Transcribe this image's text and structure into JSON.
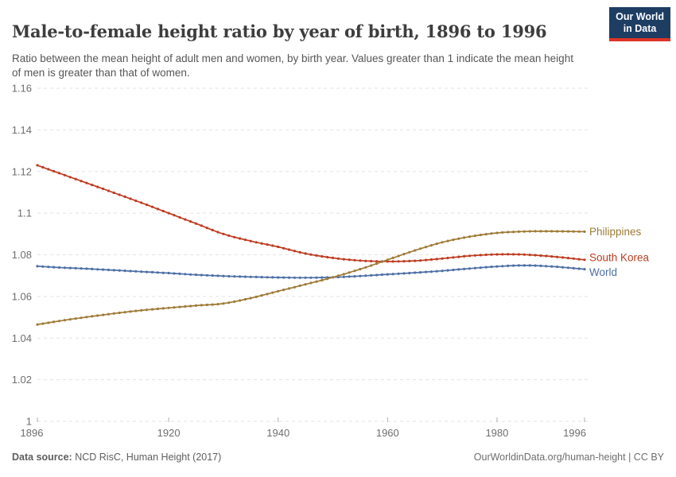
{
  "header": {
    "title": "Male-to-female height ratio by year of birth, 1896 to 1996",
    "subtitle": "Ratio between the mean height of adult men and women, by birth year. Values greater than 1 indicate the mean height of men is greater than that of women."
  },
  "logo": {
    "line1": "Our World",
    "line2": "in Data"
  },
  "footer": {
    "source_label": "Data source:",
    "source_value": " NCD RisC, Human Height (2017)",
    "attribution": "OurWorldinData.org/human-height | CC BY"
  },
  "colors": {
    "title": "#3d3d3d",
    "subtitle": "#565656",
    "axis_text": "#6e6e6e",
    "grid": "#e3e3e3",
    "tick": "#b0b0b0",
    "logo_bg": "#1d3d63",
    "logo_red": "#dc3426",
    "philippines": "#9e7b36",
    "south_korea": "#be3c20",
    "world": "#4c6fa5"
  },
  "chart_data": {
    "type": "line",
    "title": "Male-to-female height ratio by year of birth, 1896 to 1996",
    "xlabel": "",
    "ylabel": "",
    "xlim": [
      1896,
      1996
    ],
    "ylim": [
      1.0,
      1.16
    ],
    "grid": "horizontal-dashed",
    "legend_position": "right-end-labels",
    "markers": "circle-every-year",
    "x_ticks": [
      {
        "year": 1896,
        "label": "1896"
      },
      {
        "year": 1920,
        "label": "1920"
      },
      {
        "year": 1940,
        "label": "1940"
      },
      {
        "year": 1960,
        "label": "1960"
      },
      {
        "year": 1980,
        "label": "1980"
      },
      {
        "year": 1996,
        "label": "1996"
      }
    ],
    "y_ticks": [
      {
        "value": 1.0,
        "label": "1"
      },
      {
        "value": 1.02,
        "label": "1.02"
      },
      {
        "value": 1.04,
        "label": "1.04"
      },
      {
        "value": 1.06,
        "label": "1.06"
      },
      {
        "value": 1.08,
        "label": "1.08"
      },
      {
        "value": 1.1,
        "label": "1.1"
      },
      {
        "value": 1.12,
        "label": "1.12"
      },
      {
        "value": 1.14,
        "label": "1.14"
      },
      {
        "value": 1.16,
        "label": "1.16"
      }
    ],
    "series": [
      {
        "name": "World",
        "color_key": "world",
        "label_dy": 4,
        "points": [
          [
            1896,
            1.0745
          ],
          [
            1900,
            1.0739
          ],
          [
            1905,
            1.0733
          ],
          [
            1910,
            1.0726
          ],
          [
            1915,
            1.0719
          ],
          [
            1920,
            1.0712
          ],
          [
            1925,
            1.0704
          ],
          [
            1930,
            1.0698
          ],
          [
            1935,
            1.0694
          ],
          [
            1940,
            1.0691
          ],
          [
            1945,
            1.069
          ],
          [
            1950,
            1.0692
          ],
          [
            1955,
            1.0698
          ],
          [
            1960,
            1.0706
          ],
          [
            1965,
            1.0714
          ],
          [
            1970,
            1.0723
          ],
          [
            1975,
            1.0734
          ],
          [
            1980,
            1.0744
          ],
          [
            1985,
            1.0749
          ],
          [
            1990,
            1.0744
          ],
          [
            1996,
            1.0731
          ]
        ]
      },
      {
        "name": "South Korea",
        "color_key": "south_korea",
        "label_dy": -3,
        "points": [
          [
            1896,
            1.123
          ],
          [
            1900,
            1.1192
          ],
          [
            1905,
            1.1145
          ],
          [
            1910,
            1.1098
          ],
          [
            1915,
            1.105
          ],
          [
            1920,
            1.1
          ],
          [
            1925,
            1.095
          ],
          [
            1930,
            1.09
          ],
          [
            1935,
            1.0866
          ],
          [
            1940,
            1.0838
          ],
          [
            1945,
            1.0806
          ],
          [
            1950,
            1.0785
          ],
          [
            1955,
            1.0772
          ],
          [
            1960,
            1.0768
          ],
          [
            1965,
            1.0771
          ],
          [
            1970,
            1.0782
          ],
          [
            1975,
            1.0795
          ],
          [
            1980,
            1.0802
          ],
          [
            1985,
            1.0801
          ],
          [
            1990,
            1.0792
          ],
          [
            1996,
            1.0776
          ]
        ]
      },
      {
        "name": "Philippines",
        "color_key": "philippines",
        "label_dy": 0,
        "points": [
          [
            1896,
            1.0465
          ],
          [
            1900,
            1.0482
          ],
          [
            1905,
            1.0501
          ],
          [
            1910,
            1.0518
          ],
          [
            1915,
            1.0533
          ],
          [
            1920,
            1.0545
          ],
          [
            1925,
            1.0556
          ],
          [
            1930,
            1.0566
          ],
          [
            1935,
            1.0592
          ],
          [
            1940,
            1.0625
          ],
          [
            1945,
            1.0658
          ],
          [
            1950,
            1.0692
          ],
          [
            1955,
            1.0731
          ],
          [
            1960,
            1.0776
          ],
          [
            1965,
            1.0821
          ],
          [
            1970,
            1.086
          ],
          [
            1975,
            1.0887
          ],
          [
            1980,
            1.0905
          ],
          [
            1985,
            1.0912
          ],
          [
            1990,
            1.0913
          ],
          [
            1996,
            1.0911
          ]
        ]
      }
    ]
  }
}
